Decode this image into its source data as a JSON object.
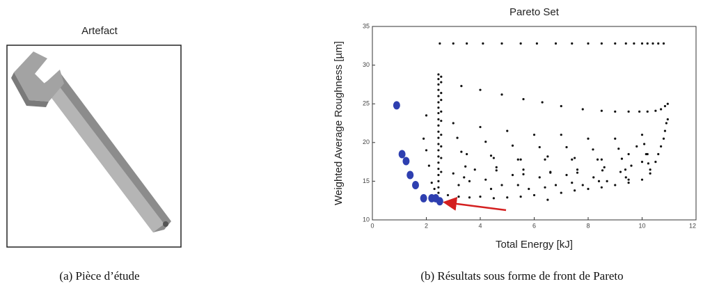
{
  "figure_a": {
    "title": "Artefact",
    "caption": "(a) Pièce d’étude"
  },
  "figure_b_caption": "(b) Résultats sous forme de front de Pareto",
  "chart_data": {
    "type": "scatter",
    "title": "Pareto Set",
    "xlabel": "Total Energy [kJ]",
    "ylabel": "Weighted Average Roughness [µm]",
    "xlim": [
      0,
      12
    ],
    "ylim": [
      10,
      35
    ],
    "xticks": [
      0,
      2,
      4,
      6,
      8,
      10,
      12
    ],
    "yticks": [
      10,
      15,
      20,
      25,
      30,
      35
    ],
    "series": [
      {
        "color": "#111111",
        "x": [
          2.5,
          3.0,
          3.5,
          4.1,
          4.8,
          5.5,
          6.1,
          6.8,
          7.4,
          8.0,
          8.5,
          9.0,
          9.4,
          9.7,
          10.0,
          10.2,
          10.4,
          10.6,
          10.8,
          3.3,
          4.0,
          4.8,
          5.6,
          6.3,
          7.0,
          7.8,
          8.5,
          9.0,
          9.5,
          9.9,
          10.2,
          10.5,
          10.7,
          10.85,
          10.95,
          2.45,
          2.45,
          2.45,
          2.45,
          2.45,
          2.45,
          2.45,
          2.45,
          2.45,
          2.45,
          2.45,
          2.45,
          2.45,
          2.45,
          2.45,
          2.45,
          2.45,
          2.45,
          2.45,
          2.45,
          2.45,
          2.55,
          2.55,
          2.55,
          2.55,
          2.55,
          2.55,
          2.55,
          2.55,
          2.55,
          2.55,
          2.0,
          1.9,
          2.0,
          2.1,
          2.2,
          2.3,
          3.0,
          3.15,
          3.3,
          3.45,
          3.6,
          4.0,
          4.2,
          4.4,
          4.6,
          4.8,
          5.0,
          5.2,
          5.4,
          5.6,
          5.8,
          6.0,
          6.2,
          6.4,
          6.6,
          6.8,
          7.0,
          7.2,
          7.4,
          7.6,
          7.8,
          8.0,
          8.18,
          8.35,
          8.53,
          8.7,
          9.0,
          9.13,
          9.25,
          9.38,
          9.5,
          10.0,
          10.08,
          10.15,
          10.23,
          10.3,
          10.3,
          10.5,
          10.6,
          10.7,
          10.8,
          10.85,
          10.9,
          10.95,
          2.8,
          3.2,
          3.6,
          4.0,
          4.5,
          5.0,
          5.5,
          6.0,
          6.5,
          7.0,
          7.5,
          8.0,
          8.5,
          9.0,
          9.5,
          10.0,
          3.0,
          3.4,
          3.8,
          4.2,
          4.6,
          5.2,
          5.6,
          6.2,
          6.6,
          7.2,
          7.6,
          8.2,
          8.6,
          9.2,
          9.6,
          3.2,
          4.4,
          5.4,
          6.4,
          7.4,
          8.4,
          9.4,
          3.5,
          4.5,
          5.5,
          6.5,
          7.5,
          8.5,
          9.5,
          10.0,
          10.2,
          9.8
        ],
        "values": [
          32.8,
          32.8,
          32.8,
          32.8,
          32.8,
          32.8,
          32.8,
          32.8,
          32.8,
          32.8,
          32.8,
          32.8,
          32.8,
          32.8,
          32.8,
          32.8,
          32.8,
          32.8,
          32.8,
          27.3,
          26.8,
          26.2,
          25.6,
          25.2,
          24.7,
          24.3,
          24.1,
          24.0,
          24.0,
          24.0,
          24.0,
          24.1,
          24.3,
          24.7,
          25.0,
          28.8,
          28.2,
          27.5,
          26.8,
          26.0,
          25.2,
          24.5,
          23.8,
          23.0,
          22.2,
          21.4,
          20.6,
          19.8,
          19.0,
          18.2,
          17.4,
          16.6,
          15.8,
          15.0,
          14.2,
          13.5,
          28.5,
          27.8,
          26.4,
          25.5,
          24.0,
          22.8,
          21.0,
          19.5,
          18.0,
          16.2,
          23.5,
          20.5,
          19.0,
          17.0,
          14.8,
          14.0,
          22.5,
          20.6,
          18.8,
          16.9,
          15.0,
          22.0,
          20.1,
          18.3,
          16.4,
          14.5,
          21.5,
          19.6,
          17.8,
          15.9,
          14.0,
          21.0,
          19.4,
          17.8,
          16.1,
          14.5,
          21.0,
          19.4,
          17.8,
          16.1,
          14.5,
          20.5,
          19.1,
          17.8,
          16.4,
          15.0,
          20.5,
          19.2,
          17.9,
          16.5,
          15.2,
          21.0,
          19.8,
          18.5,
          17.3,
          16.0,
          16.5,
          17.5,
          18.5,
          19.5,
          20.5,
          21.5,
          22.5,
          23.0,
          13.2,
          13.0,
          12.9,
          13.0,
          12.8,
          12.9,
          13.0,
          13.2,
          12.6,
          13.5,
          13.8,
          14.0,
          14.2,
          14.5,
          14.8,
          15.2,
          16.0,
          15.5,
          16.5,
          15.2,
          16.8,
          15.8,
          16.5,
          15.5,
          16.2,
          15.8,
          16.5,
          15.5,
          16.8,
          16.2,
          17.0,
          14.5,
          14.0,
          14.5,
          14.2,
          14.8,
          15.0,
          15.5,
          18.5,
          18.0,
          17.8,
          18.2,
          18.0,
          17.8,
          18.5,
          17.5,
          18.5,
          19.5
        ]
      },
      {
        "color": "#2e3fb0",
        "x": [
          0.9,
          1.1,
          1.25,
          1.4,
          1.6,
          1.9,
          2.2,
          2.35,
          2.5
        ],
        "values": [
          24.8,
          18.5,
          17.6,
          15.8,
          14.5,
          12.8,
          12.8,
          12.8,
          12.4
        ]
      }
    ]
  }
}
